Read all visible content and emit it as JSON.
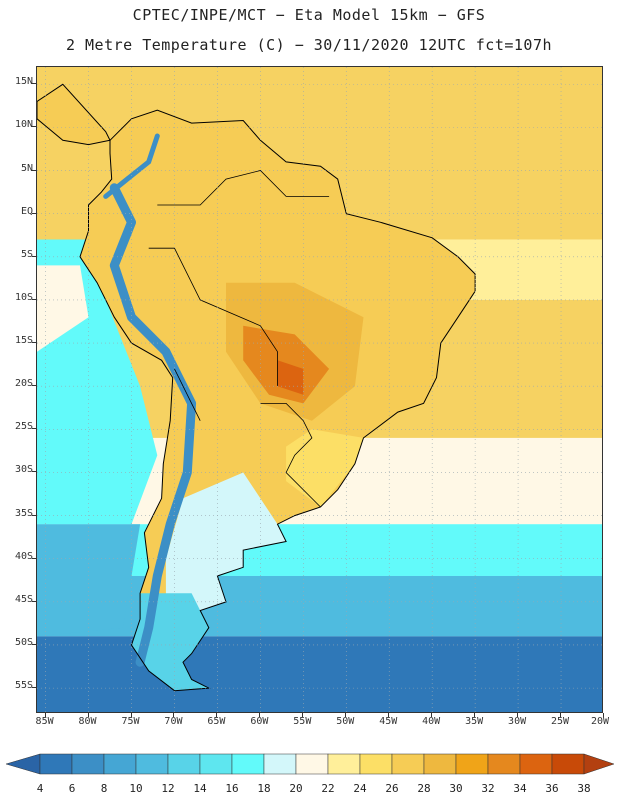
{
  "title": {
    "line1": "CPTEC/INPE/MCT −  Eta Model 15km − GFS",
    "line2": "2 Metre Temperature (C) − 30/11/2020 12UTC fct=107h"
  },
  "axes": {
    "lat_labels": [
      "15N",
      "10N",
      "5N",
      "EQ",
      "5S",
      "10S",
      "15S",
      "20S",
      "25S",
      "30S",
      "35S",
      "40S",
      "45S",
      "50S",
      "55S"
    ],
    "lat_values": [
      15,
      10,
      5,
      0,
      -5,
      -10,
      -15,
      -20,
      -25,
      -30,
      -35,
      -40,
      -45,
      -50,
      -55
    ],
    "lon_labels": [
      "85W",
      "80W",
      "75W",
      "70W",
      "65W",
      "60W",
      "55W",
      "50W",
      "45W",
      "40W",
      "35W",
      "30W",
      "25W",
      "20W"
    ],
    "lon_values": [
      -85,
      -80,
      -75,
      -70,
      -65,
      -60,
      -55,
      -50,
      -45,
      -40,
      -35,
      -30,
      -25,
      -20
    ],
    "lat_range": [
      -58,
      17
    ],
    "lon_range": [
      -86,
      -20
    ],
    "grid": "dotted"
  },
  "colorbar": {
    "levels": [
      "4",
      "6",
      "8",
      "10",
      "12",
      "14",
      "16",
      "18",
      "20",
      "22",
      "24",
      "26",
      "28",
      "30",
      "32",
      "34",
      "36",
      "38"
    ],
    "colors": [
      "#2a64a6",
      "#2f78b8",
      "#3c8fc6",
      "#45a6d4",
      "#4fbbdf",
      "#58d3e8",
      "#5ee6ef",
      "#62fafa",
      "#d3f7fa",
      "#fff8e6",
      "#ffef9a",
      "#fcdf66",
      "#f6cc55",
      "#eeb83f",
      "#f0a418",
      "#e5881e",
      "#dc6410",
      "#c84a08",
      "#b34010"
    ]
  },
  "map": {
    "ocean_colors": {
      "tropics": "#f6d262",
      "subtropic": "#ffef9a",
      "cream": "#fff8e6",
      "cyan": "#62fafa",
      "mid": "#4fbbdf",
      "deep": "#2f78b8"
    },
    "land_colors": {
      "base": "#f6cc55",
      "warm": "#eeb83f",
      "hot": "#e5881e",
      "hotspot": "#dc6410",
      "cool": "#fcdf66",
      "andes": "#3c8fc6",
      "patagonia": "#58d3e8",
      "south_land": "#d3f7fa"
    },
    "border_color": "#000000"
  }
}
